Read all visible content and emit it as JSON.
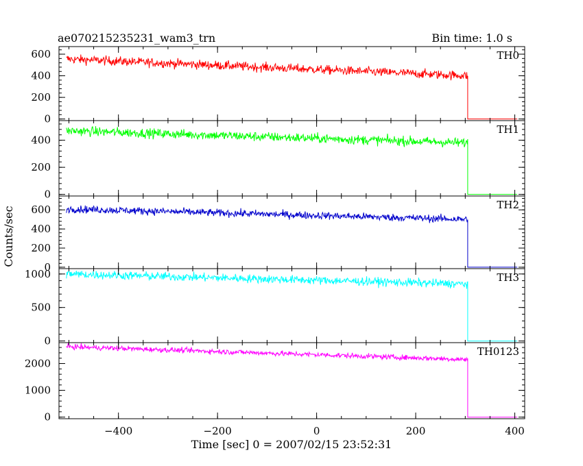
{
  "header": {
    "title": "ae070215235231_wam3_trn",
    "bin_time": "Bin time: 1.0 s"
  },
  "axes": {
    "xlabel": "Time [sec] 0 = 2007/02/15 23:52:31",
    "ylabel": "Counts/sec",
    "x_range": [
      -520,
      420
    ],
    "x_ticks": [
      -400,
      -200,
      0,
      200,
      400
    ]
  },
  "chart_data": [
    {
      "type": "line",
      "name": "TH0",
      "color": "#ff0000",
      "ylim": [
        -15,
        670
      ],
      "yticks": [
        0,
        200,
        400,
        600
      ],
      "x_start": -505,
      "x_drop": 305,
      "x_end": 405,
      "level_start": 555,
      "level_end": 400,
      "noise_amp": 30
    },
    {
      "type": "line",
      "name": "TH1",
      "color": "#00ff00",
      "ylim": [
        -12,
        545
      ],
      "yticks": [
        0,
        200,
        400
      ],
      "x_start": -505,
      "x_drop": 305,
      "x_end": 405,
      "level_start": 470,
      "level_end": 380,
      "noise_amp": 25
    },
    {
      "type": "line",
      "name": "TH2",
      "color": "#0000cc",
      "ylim": [
        -15,
        745
      ],
      "yticks": [
        0,
        200,
        400,
        600
      ],
      "x_start": -505,
      "x_drop": 305,
      "x_end": 405,
      "level_start": 610,
      "level_end": 500,
      "noise_amp": 28
    },
    {
      "type": "line",
      "name": "TH3",
      "color": "#00ffff",
      "ylim": [
        -25,
        1080
      ],
      "yticks": [
        0,
        500,
        1000
      ],
      "x_start": -505,
      "x_drop": 305,
      "x_end": 405,
      "level_start": 1000,
      "level_end": 850,
      "noise_amp": 45
    },
    {
      "type": "line",
      "name": "TH0123",
      "color": "#ff00ff",
      "ylim": [
        -60,
        2780
      ],
      "yticks": [
        0,
        1000,
        2000
      ],
      "x_start": -505,
      "x_drop": 305,
      "x_end": 405,
      "level_start": 2630,
      "level_end": 2150,
      "noise_amp": 70
    }
  ]
}
